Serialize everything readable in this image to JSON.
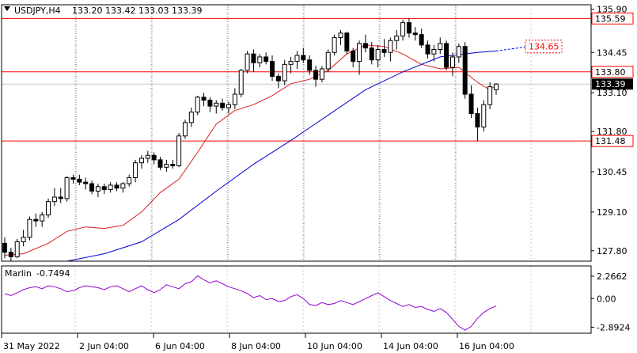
{
  "header": {
    "symbol_text": "USDJPY,H4",
    "ohlc_text": "133.20 133.42 133.03 133.39"
  },
  "chart_data": {
    "type": "candlestick",
    "symbol": "USDJPY",
    "timeframe": "H4",
    "price_axis_ticks": [
      "135.90",
      "134.45",
      "133.10",
      "131.80",
      "130.45",
      "129.10",
      "127.80"
    ],
    "price_axis_values": [
      135.9,
      134.45,
      133.1,
      131.8,
      130.45,
      129.1,
      127.8
    ],
    "time_axis_labels": [
      "31 May 2022",
      "2 Jun 04:00",
      "6 Jun 04:00",
      "8 Jun 04:00",
      "10 Jun 04:00",
      "14 Jun 04:00",
      "16 Jun 04:00"
    ],
    "ylim": [
      127.45,
      136.05
    ],
    "horizontal_levels": [
      {
        "label": "135.59",
        "value": 135.59,
        "color": "#ff0000"
      },
      {
        "label": "133.80",
        "value": 133.8,
        "color": "#ff0000"
      },
      {
        "label": "131.48",
        "value": 131.48,
        "color": "#ff0000"
      }
    ],
    "projection": {
      "label": "134.65",
      "value": 134.65,
      "color": "#0000ff"
    },
    "current_price": {
      "label": "133.39",
      "value": 133.39
    },
    "candles": [
      [
        128.05,
        128.25,
        127.55,
        127.75
      ],
      [
        127.75,
        127.9,
        127.45,
        127.6
      ],
      [
        127.6,
        128.2,
        127.55,
        128.1
      ],
      [
        128.1,
        128.5,
        127.95,
        128.25
      ],
      [
        128.25,
        128.95,
        128.15,
        128.85
      ],
      [
        128.85,
        129.05,
        128.6,
        128.8
      ],
      [
        128.8,
        129.1,
        128.6,
        129.0
      ],
      [
        129.0,
        129.55,
        128.9,
        129.45
      ],
      [
        129.45,
        129.9,
        129.3,
        129.6
      ],
      [
        129.6,
        129.9,
        129.4,
        129.55
      ],
      [
        129.55,
        130.3,
        129.45,
        130.25
      ],
      [
        130.25,
        130.35,
        130.05,
        130.2
      ],
      [
        130.2,
        130.35,
        130.0,
        130.1
      ],
      [
        130.1,
        130.25,
        129.85,
        130.05
      ],
      [
        130.05,
        130.15,
        129.7,
        129.8
      ],
      [
        129.8,
        130.05,
        129.6,
        129.95
      ],
      [
        129.95,
        130.05,
        129.7,
        129.85
      ],
      [
        129.85,
        130.1,
        129.75,
        130.0
      ],
      [
        130.0,
        130.1,
        129.8,
        129.9
      ],
      [
        129.9,
        130.1,
        129.75,
        130.05
      ],
      [
        130.05,
        130.35,
        129.95,
        130.25
      ],
      [
        130.25,
        130.85,
        130.1,
        130.75
      ],
      [
        130.75,
        131.0,
        130.55,
        130.9
      ],
      [
        130.9,
        131.15,
        130.75,
        131.0
      ],
      [
        131.0,
        131.1,
        130.7,
        130.85
      ],
      [
        130.85,
        130.95,
        130.5,
        130.6
      ],
      [
        130.6,
        130.85,
        130.45,
        130.7
      ],
      [
        130.7,
        130.85,
        130.55,
        130.65
      ],
      [
        130.65,
        131.75,
        130.6,
        131.65
      ],
      [
        131.65,
        132.2,
        131.55,
        132.1
      ],
      [
        132.1,
        132.6,
        131.95,
        132.45
      ],
      [
        132.45,
        133.0,
        132.35,
        132.95
      ],
      [
        132.95,
        133.1,
        132.65,
        132.85
      ],
      [
        132.85,
        132.95,
        132.45,
        132.65
      ],
      [
        132.65,
        132.85,
        132.4,
        132.75
      ],
      [
        132.75,
        132.9,
        132.5,
        132.6
      ],
      [
        132.6,
        132.8,
        132.4,
        132.7
      ],
      [
        132.7,
        133.25,
        132.55,
        133.05
      ],
      [
        133.05,
        133.9,
        132.95,
        133.85
      ],
      [
        133.85,
        134.5,
        133.75,
        134.4
      ],
      [
        134.4,
        134.55,
        133.8,
        134.1
      ],
      [
        134.1,
        134.4,
        133.95,
        134.3
      ],
      [
        134.3,
        134.45,
        134.05,
        134.15
      ],
      [
        134.15,
        134.35,
        133.5,
        133.65
      ],
      [
        133.65,
        133.75,
        133.25,
        133.5
      ],
      [
        133.5,
        134.2,
        133.35,
        134.05
      ],
      [
        134.05,
        134.3,
        133.75,
        134.15
      ],
      [
        134.15,
        134.5,
        133.9,
        134.35
      ],
      [
        134.35,
        134.6,
        134.1,
        134.2
      ],
      [
        134.2,
        134.35,
        133.7,
        133.85
      ],
      [
        133.85,
        134.0,
        133.3,
        133.55
      ],
      [
        133.55,
        134.0,
        133.45,
        133.9
      ],
      [
        133.9,
        134.55,
        133.8,
        134.45
      ],
      [
        134.45,
        135.05,
        134.35,
        134.95
      ],
      [
        134.95,
        135.2,
        134.7,
        135.1
      ],
      [
        135.1,
        135.15,
        134.4,
        134.5
      ],
      [
        134.5,
        134.6,
        133.95,
        134.15
      ],
      [
        134.15,
        134.85,
        133.7,
        134.75
      ],
      [
        134.75,
        135.05,
        134.45,
        134.6
      ],
      [
        134.6,
        134.8,
        134.05,
        134.2
      ],
      [
        134.2,
        134.7,
        133.95,
        134.55
      ],
      [
        134.55,
        134.9,
        134.3,
        134.45
      ],
      [
        134.45,
        134.95,
        134.15,
        134.85
      ],
      [
        134.85,
        135.2,
        134.55,
        135.0
      ],
      [
        135.0,
        135.55,
        134.85,
        135.45
      ],
      [
        135.45,
        135.6,
        134.95,
        135.1
      ],
      [
        135.1,
        135.3,
        134.85,
        135.05
      ],
      [
        135.05,
        135.25,
        134.6,
        134.7
      ],
      [
        134.7,
        134.85,
        134.25,
        134.4
      ],
      [
        134.4,
        134.7,
        134.15,
        134.55
      ],
      [
        134.55,
        134.95,
        134.4,
        134.75
      ],
      [
        134.75,
        134.85,
        133.85,
        133.95
      ],
      [
        133.95,
        134.45,
        133.65,
        134.3
      ],
      [
        134.3,
        134.75,
        134.1,
        134.65
      ],
      [
        134.65,
        134.8,
        132.9,
        133.05
      ],
      [
        133.05,
        133.35,
        132.25,
        132.4
      ],
      [
        132.4,
        132.6,
        131.48,
        131.95
      ],
      [
        131.95,
        132.85,
        131.8,
        132.7
      ],
      [
        132.7,
        133.45,
        132.55,
        133.3
      ],
      [
        133.2,
        133.42,
        133.03,
        133.39
      ]
    ],
    "ma_fast": [
      {
        "i": 0,
        "v": 127.65
      },
      {
        "i": 3,
        "v": 127.7
      },
      {
        "i": 7,
        "v": 128.05
      },
      {
        "i": 10,
        "v": 128.45
      },
      {
        "i": 13,
        "v": 128.6
      },
      {
        "i": 16,
        "v": 128.55
      },
      {
        "i": 19,
        "v": 128.65
      },
      {
        "i": 22,
        "v": 129.1
      },
      {
        "i": 25,
        "v": 129.75
      },
      {
        "i": 28,
        "v": 130.2
      },
      {
        "i": 31,
        "v": 131.1
      },
      {
        "i": 34,
        "v": 132.05
      },
      {
        "i": 37,
        "v": 132.5
      },
      {
        "i": 40,
        "v": 132.7
      },
      {
        "i": 43,
        "v": 133.0
      },
      {
        "i": 46,
        "v": 133.4
      },
      {
        "i": 49,
        "v": 133.55
      },
      {
        "i": 52,
        "v": 133.85
      },
      {
        "i": 55,
        "v": 134.4
      },
      {
        "i": 58,
        "v": 134.7
      },
      {
        "i": 61,
        "v": 134.65
      },
      {
        "i": 64,
        "v": 134.4
      },
      {
        "i": 67,
        "v": 134.05
      },
      {
        "i": 70,
        "v": 133.9
      },
      {
        "i": 73,
        "v": 133.95
      },
      {
        "i": 76,
        "v": 133.45
      },
      {
        "i": 78,
        "v": 133.2
      },
      {
        "i": 79,
        "v": 133.35
      }
    ],
    "ma_slow": [
      {
        "i": 10,
        "v": 127.45
      },
      {
        "i": 16,
        "v": 127.7
      },
      {
        "i": 22,
        "v": 128.1
      },
      {
        "i": 28,
        "v": 128.85
      },
      {
        "i": 34,
        "v": 129.8
      },
      {
        "i": 40,
        "v": 130.7
      },
      {
        "i": 46,
        "v": 131.5
      },
      {
        "i": 52,
        "v": 132.35
      },
      {
        "i": 58,
        "v": 133.2
      },
      {
        "i": 64,
        "v": 133.8
      },
      {
        "i": 70,
        "v": 134.3
      },
      {
        "i": 76,
        "v": 134.45
      },
      {
        "i": 79,
        "v": 134.5
      }
    ],
    "indicator": {
      "name": "Marlin",
      "value_label": "-0.7494",
      "axis_labels": [
        "2.2662",
        "0.00",
        "-2.8924"
      ],
      "axis_values": [
        2.2662,
        0.0,
        -2.8924
      ],
      "ylim": [
        -3.5,
        3.3
      ],
      "color": "#9400d3",
      "values": [
        0.5,
        0.3,
        0.6,
        0.9,
        1.1,
        1.2,
        1.0,
        1.3,
        1.2,
        1.0,
        0.7,
        0.8,
        1.1,
        1.3,
        1.2,
        1.1,
        0.9,
        1.2,
        1.3,
        1.0,
        0.7,
        1.0,
        1.3,
        0.9,
        0.6,
        0.9,
        1.4,
        1.2,
        1.0,
        1.5,
        1.7,
        2.3,
        1.9,
        1.6,
        1.8,
        1.5,
        1.2,
        1.0,
        0.8,
        0.5,
        0.1,
        0.3,
        -0.1,
        0.0,
        -0.3,
        -0.2,
        0.2,
        0.4,
        0.0,
        -0.6,
        -0.7,
        -0.4,
        -0.6,
        -0.5,
        -0.2,
        -0.4,
        -0.6,
        -0.3,
        0.0,
        0.3,
        0.6,
        0.2,
        -0.2,
        -0.5,
        -0.8,
        -0.6,
        -0.9,
        -0.8,
        -1.1,
        -1.3,
        -1.0,
        -1.4,
        -2.1,
        -2.8,
        -3.2,
        -2.8,
        -2.0,
        -1.4,
        -1.0,
        -0.75
      ]
    },
    "colors": {
      "up_body": "#ffffff",
      "down_body": "#000000",
      "ma_fast": "#dc1e1e",
      "ma_slow": "#0000cd",
      "level": "#ff0000",
      "separator": "#7a7a7a",
      "grid": "#c8c8c8"
    }
  }
}
